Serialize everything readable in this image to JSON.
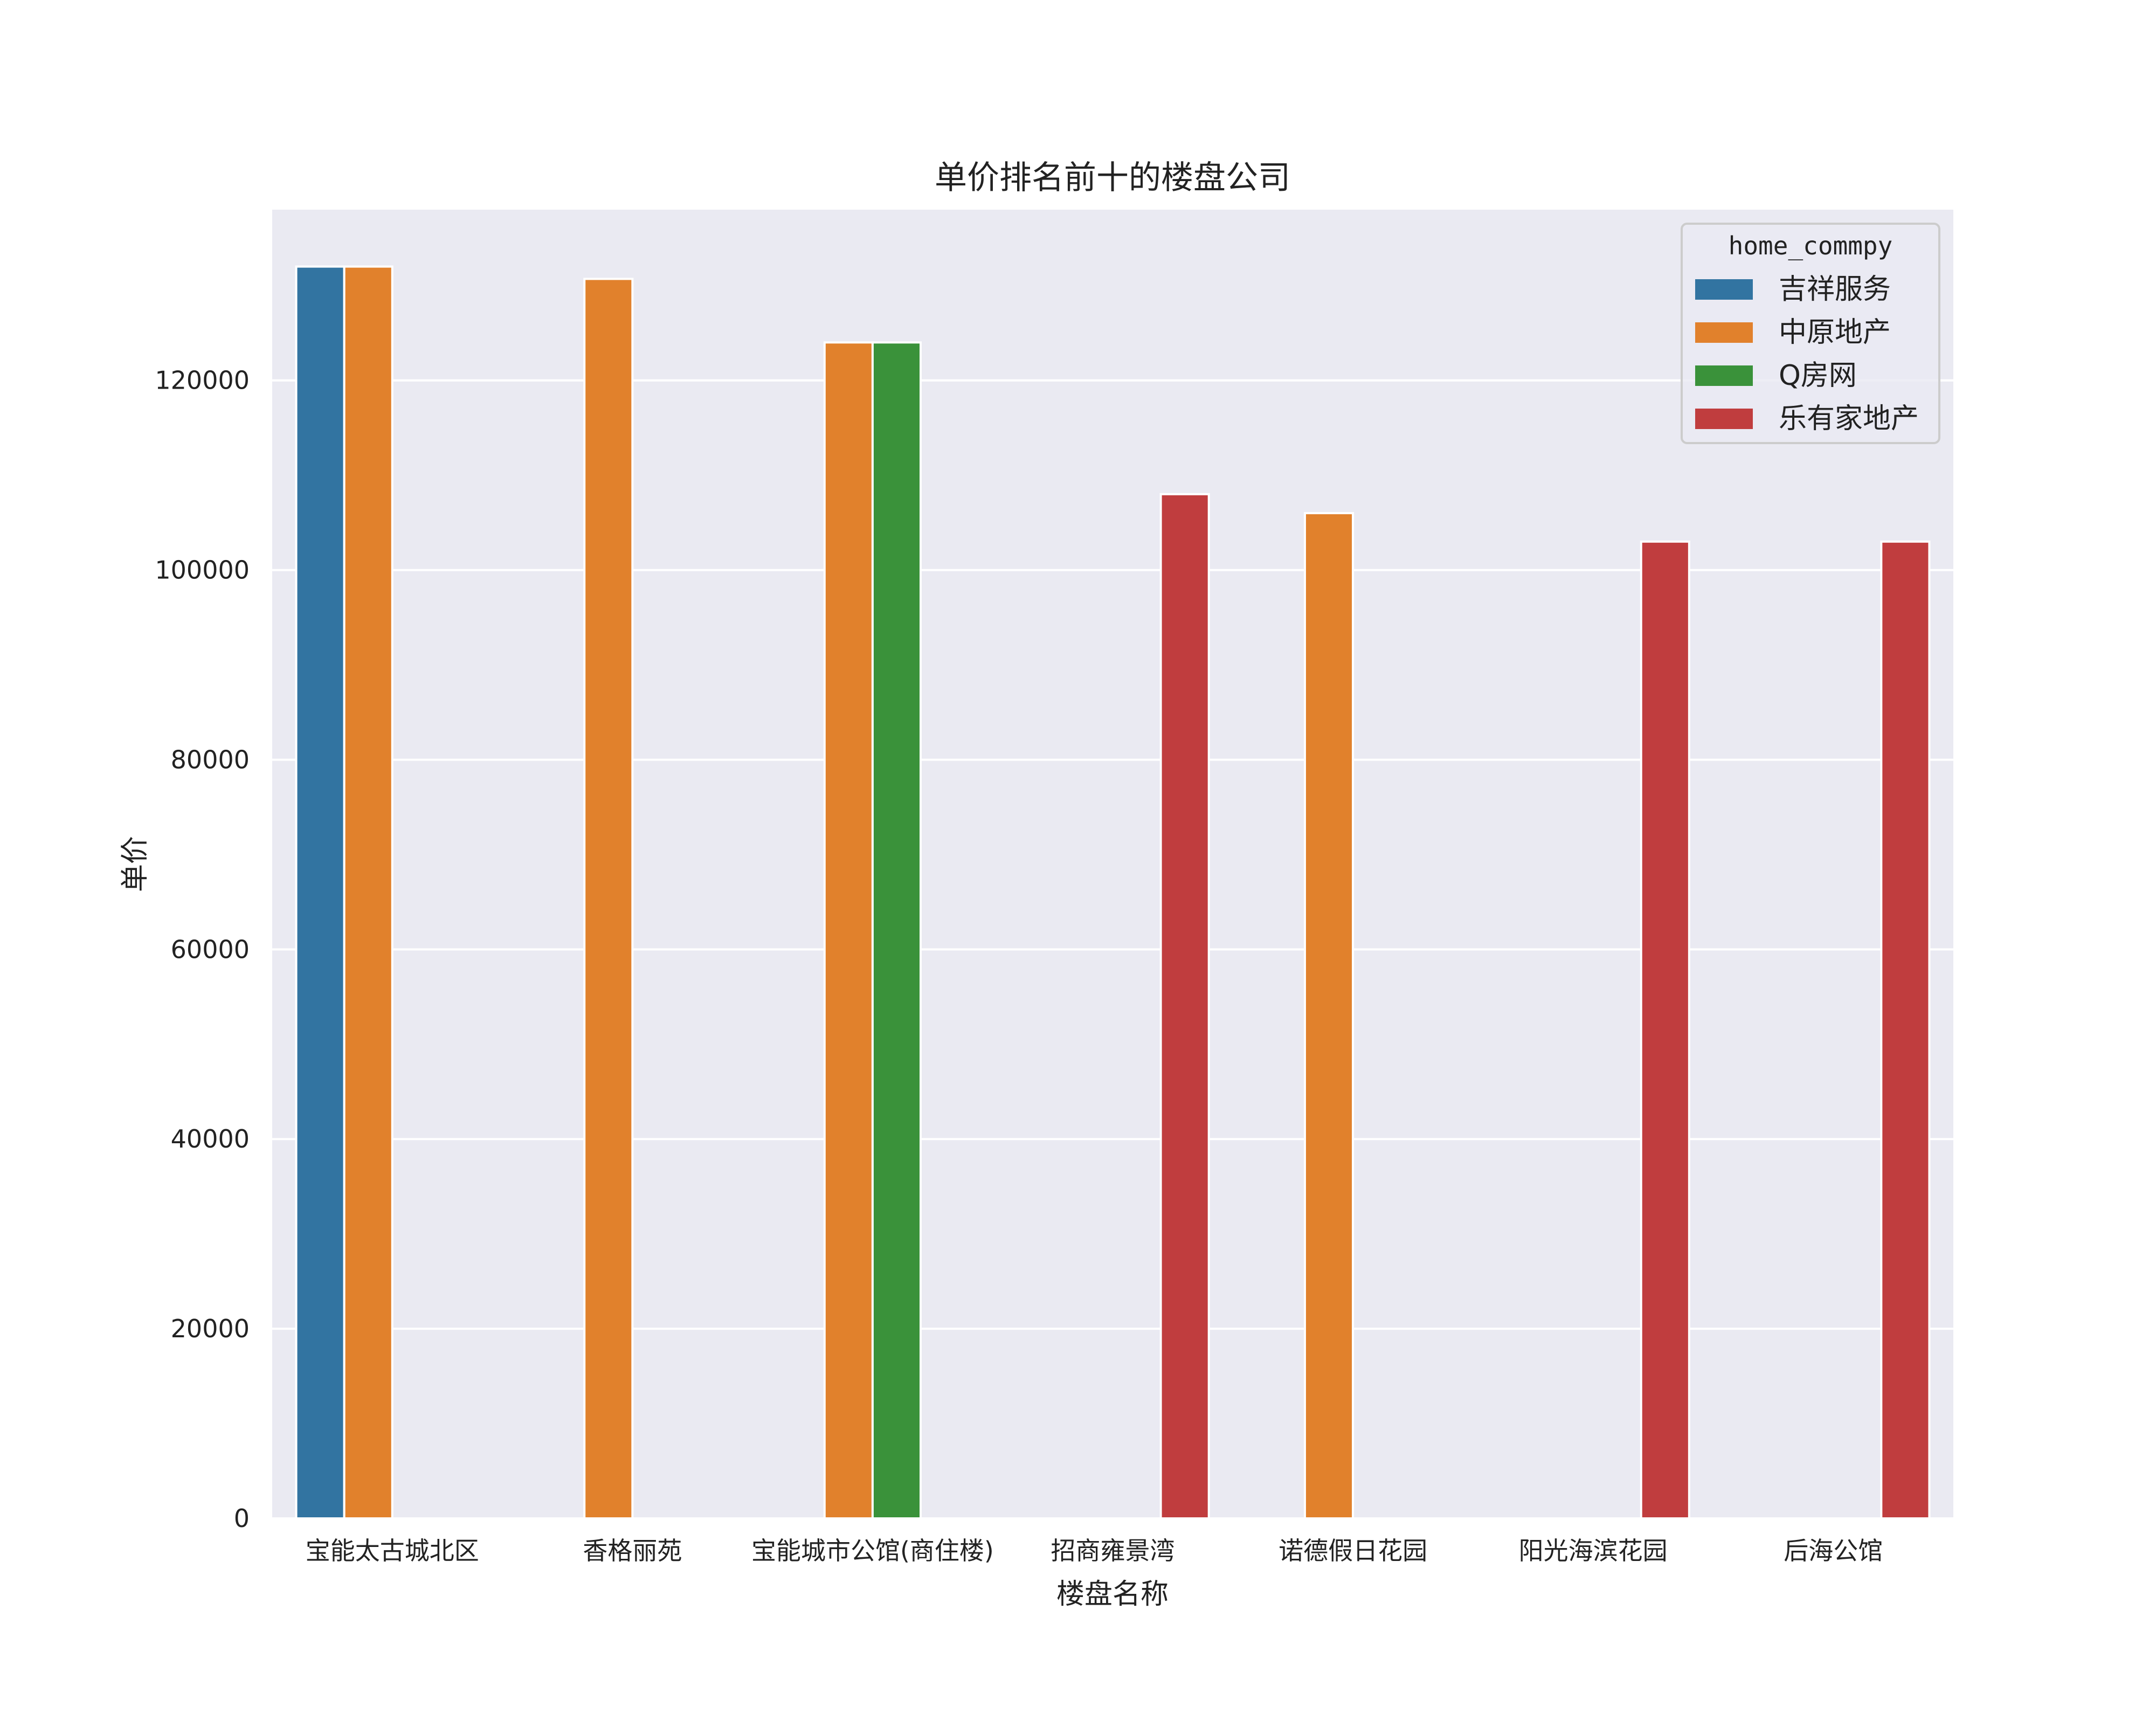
{
  "chart_data": {
    "type": "bar",
    "title": "单价排名前十的楼盘公司",
    "xlabel": "楼盘名称",
    "ylabel": "单价",
    "ylim": [
      0,
      138000
    ],
    "yticks": [
      0,
      20000,
      40000,
      60000,
      80000,
      100000,
      120000
    ],
    "grid": true,
    "legend": {
      "title": "home_commpy",
      "placement": "top-right"
    },
    "categories": [
      "宝能太古城北区",
      "香格丽苑",
      "宝能城市公馆(商住楼)",
      "招商雍景湾",
      "诺德假日花园",
      "阳光海滨花园",
      "后海公馆"
    ],
    "series": [
      {
        "name": "吉祥服务",
        "color": "#3274a1",
        "values": [
          132000,
          null,
          null,
          null,
          null,
          null,
          null
        ]
      },
      {
        "name": "中原地产",
        "color": "#e1812c",
        "values": [
          132000,
          130700,
          124000,
          null,
          106000,
          null,
          null
        ]
      },
      {
        "name": "Q房网",
        "color": "#3a923a",
        "values": [
          null,
          null,
          124000,
          null,
          null,
          null,
          null
        ]
      },
      {
        "name": "乐有家地产",
        "color": "#c03d3e",
        "values": [
          null,
          null,
          null,
          108000,
          null,
          103000,
          103000
        ]
      }
    ]
  }
}
